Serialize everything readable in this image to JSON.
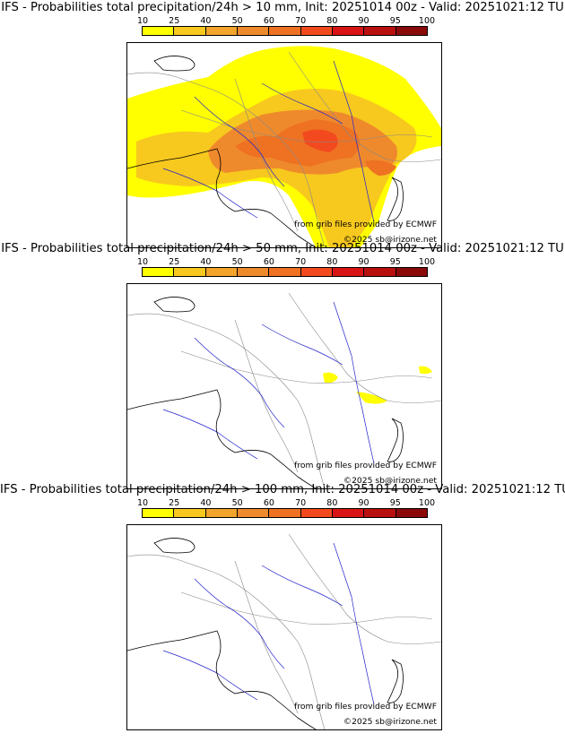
{
  "panels": [
    {
      "title": "IFS - Probabilities total precipitation/24h > 10 mm, Init: 20251014 00z - Valid: 20251021:12 TU",
      "map_source": "from grib files provided by ECMWF",
      "copyright": "©2025 sb@irizone.net"
    },
    {
      "title": "IFS - Probabilities total precipitation/24h > 50 mm, Init: 20251014 00z - Valid: 20251021:12 TU",
      "map_source": "from grib files provided by ECMWF",
      "copyright": "©2025 sb@irizone.net"
    },
    {
      "title": "IFS - Probabilities total precipitation/24h > 100 mm, Init: 20251014 00z - Valid: 20251021:12 TU",
      "map_source": "from grib files provided by ECMWF",
      "copyright": "©2025 sb@irizone.net"
    }
  ],
  "colorbar": {
    "levels": [
      "10",
      "25",
      "40",
      "50",
      "60",
      "70",
      "80",
      "90",
      "95",
      "100"
    ],
    "colors": [
      "#ffff00",
      "#f7c81e",
      "#f2a52a",
      "#ef8a2c",
      "#ee7222",
      "#f24a1e",
      "#d91414",
      "#b80f0f",
      "#8a0a0a"
    ]
  },
  "legend_colors": {
    "rivers": "#2222cc",
    "borders": "#888888",
    "coast": "#000000"
  }
}
